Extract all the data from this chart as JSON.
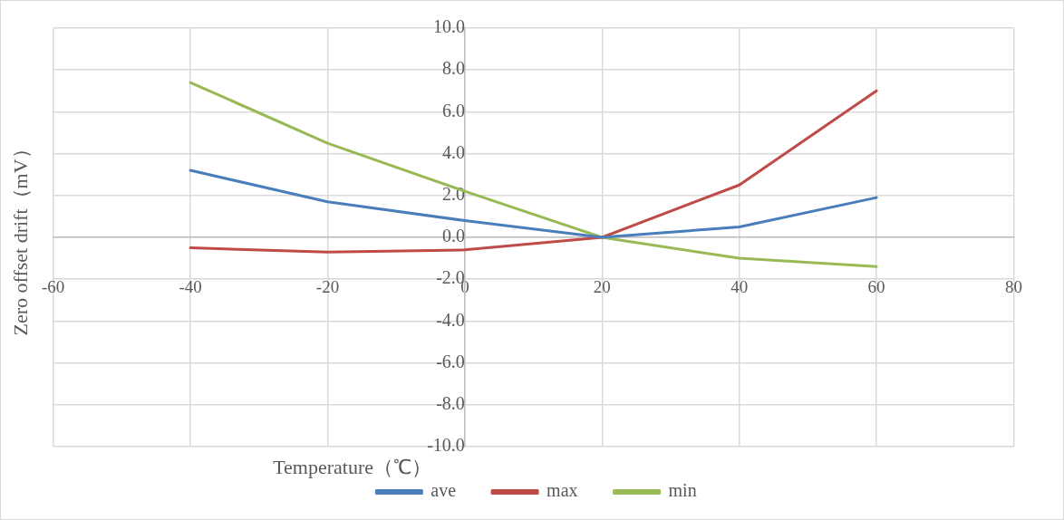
{
  "chart_data": {
    "type": "line",
    "xlabel": "Temperature（℃）",
    "ylabel": "Zero offset drift（mV）",
    "x": [
      -40,
      -20,
      0,
      20,
      40,
      60
    ],
    "series": [
      {
        "name": "ave",
        "color": "#4a7ebb",
        "values": [
          3.2,
          1.7,
          0.8,
          0,
          0.5,
          1.9
        ]
      },
      {
        "name": "max",
        "color": "#be4b48",
        "values": [
          -0.5,
          -0.7,
          -0.6,
          0,
          2.5,
          7.0
        ]
      },
      {
        "name": "min",
        "color": "#98b954",
        "values": [
          7.4,
          4.5,
          2.2,
          0,
          -1.0,
          -1.4
        ]
      }
    ],
    "xlim": [
      -60,
      80
    ],
    "xticks": [
      -60,
      -40,
      -20,
      0,
      20,
      40,
      60,
      80
    ],
    "ylim": [
      -10,
      10
    ],
    "yticks": [
      {
        "value": -10,
        "label": "-10.0"
      },
      {
        "value": -8,
        "label": "-8.0"
      },
      {
        "value": -6,
        "label": "-6.0"
      },
      {
        "value": -4,
        "label": "-4.0"
      },
      {
        "value": -2,
        "label": "-2.0"
      },
      {
        "value": 0,
        "label": "0.0"
      },
      {
        "value": 2,
        "label": "2.0"
      },
      {
        "value": 4,
        "label": "4.0"
      },
      {
        "value": 6,
        "label": "6.0"
      },
      {
        "value": 8,
        "label": "8.0"
      },
      {
        "value": 10,
        "label": "10.0"
      }
    ],
    "grid": true,
    "legend": "bottom",
    "marker": "none",
    "line_style": "solid"
  }
}
